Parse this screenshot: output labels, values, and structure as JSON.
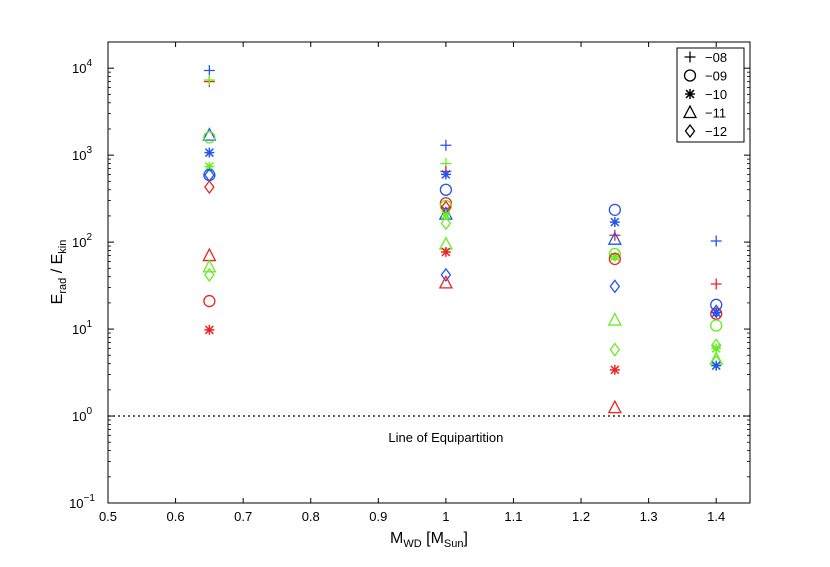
{
  "chart_data": {
    "type": "scatter",
    "title": "",
    "xlabel": {
      "main": "M",
      "sub1": "WD",
      "mid": " [M",
      "sub2": "Sun",
      "end": "]"
    },
    "ylabel": {
      "main1": "E",
      "sub1": "rad",
      "mid": " / E",
      "sub2": "kin"
    },
    "xlim": [
      0.5,
      1.45
    ],
    "ylim": [
      0.1,
      20000
    ],
    "yscale": "log",
    "grid": false,
    "legend_position": "top-right",
    "xticks": [
      "0.5",
      "0.6",
      "0.7",
      "0.8",
      "0.9",
      "1",
      "1.1",
      "1.2",
      "1.3",
      "1.4"
    ],
    "yticks": [
      {
        "base": "10",
        "exp": "−1",
        "value": 0.1
      },
      {
        "base": "10",
        "exp": "0",
        "value": 1
      },
      {
        "base": "10",
        "exp": "1",
        "value": 10
      },
      {
        "base": "10",
        "exp": "2",
        "value": 100
      },
      {
        "base": "10",
        "exp": "3",
        "value": 1000
      },
      {
        "base": "10",
        "exp": "4",
        "value": 10000
      }
    ],
    "legend": [
      {
        "marker": "plus",
        "label": "−08"
      },
      {
        "marker": "circle",
        "label": "−09"
      },
      {
        "marker": "star",
        "label": "−10"
      },
      {
        "marker": "triangle",
        "label": "−11"
      },
      {
        "marker": "diamond",
        "label": "−12"
      }
    ],
    "reference_line": {
      "y": 1,
      "style": "dotted",
      "label": "Line of Equipartition"
    },
    "colors": {
      "blue": "#2255ee",
      "red": "#ee2222",
      "green": "#66ee22"
    },
    "points": [
      {
        "x": 0.65,
        "y": 9400,
        "marker": "plus",
        "color": "blue"
      },
      {
        "x": 0.65,
        "y": 7000,
        "marker": "plus",
        "color": "red"
      },
      {
        "x": 0.65,
        "y": 7300,
        "marker": "plus",
        "color": "green"
      },
      {
        "x": 0.65,
        "y": 1700,
        "marker": "triangle",
        "color": "blue"
      },
      {
        "x": 0.65,
        "y": 1600,
        "marker": "circle",
        "color": "green"
      },
      {
        "x": 0.65,
        "y": 1070,
        "marker": "star",
        "color": "blue"
      },
      {
        "x": 0.65,
        "y": 740,
        "marker": "star",
        "color": "green"
      },
      {
        "x": 0.65,
        "y": 590,
        "marker": "circle",
        "color": "blue"
      },
      {
        "x": 0.65,
        "y": 590,
        "marker": "diamond",
        "color": "blue"
      },
      {
        "x": 0.65,
        "y": 430,
        "marker": "diamond",
        "color": "red"
      },
      {
        "x": 0.65,
        "y": 70,
        "marker": "triangle",
        "color": "red"
      },
      {
        "x": 0.65,
        "y": 52,
        "marker": "triangle",
        "color": "green"
      },
      {
        "x": 0.65,
        "y": 42,
        "marker": "diamond",
        "color": "green"
      },
      {
        "x": 0.65,
        "y": 21,
        "marker": "circle",
        "color": "red"
      },
      {
        "x": 0.65,
        "y": 9.8,
        "marker": "star",
        "color": "red"
      },
      {
        "x": 1.0,
        "y": 1300,
        "marker": "plus",
        "color": "blue"
      },
      {
        "x": 1.0,
        "y": 800,
        "marker": "plus",
        "color": "green"
      },
      {
        "x": 1.0,
        "y": 650,
        "marker": "plus",
        "color": "red"
      },
      {
        "x": 1.0,
        "y": 600,
        "marker": "star",
        "color": "blue"
      },
      {
        "x": 1.0,
        "y": 400,
        "marker": "circle",
        "color": "blue"
      },
      {
        "x": 1.0,
        "y": 280,
        "marker": "circle",
        "color": "red"
      },
      {
        "x": 1.0,
        "y": 260,
        "marker": "circle",
        "color": "green"
      },
      {
        "x": 1.0,
        "y": 250,
        "marker": "diamond",
        "color": "red"
      },
      {
        "x": 1.0,
        "y": 210,
        "marker": "triangle",
        "color": "blue"
      },
      {
        "x": 1.0,
        "y": 205,
        "marker": "star",
        "color": "green"
      },
      {
        "x": 1.0,
        "y": 165,
        "marker": "diamond",
        "color": "green"
      },
      {
        "x": 1.0,
        "y": 95,
        "marker": "triangle",
        "color": "green"
      },
      {
        "x": 1.0,
        "y": 77,
        "marker": "star",
        "color": "red"
      },
      {
        "x": 1.0,
        "y": 42,
        "marker": "diamond",
        "color": "blue"
      },
      {
        "x": 1.0,
        "y": 34,
        "marker": "triangle",
        "color": "red"
      },
      {
        "x": 1.25,
        "y": 235,
        "marker": "circle",
        "color": "blue"
      },
      {
        "x": 1.25,
        "y": 170,
        "marker": "star",
        "color": "blue"
      },
      {
        "x": 1.25,
        "y": 120,
        "marker": "plus",
        "color": "red"
      },
      {
        "x": 1.25,
        "y": 108,
        "marker": "triangle",
        "color": "blue"
      },
      {
        "x": 1.25,
        "y": 73,
        "marker": "circle",
        "color": "green"
      },
      {
        "x": 1.25,
        "y": 68,
        "marker": "star",
        "color": "green"
      },
      {
        "x": 1.25,
        "y": 64,
        "marker": "circle",
        "color": "red"
      },
      {
        "x": 1.25,
        "y": 31,
        "marker": "diamond",
        "color": "blue"
      },
      {
        "x": 1.25,
        "y": 12.7,
        "marker": "triangle",
        "color": "green"
      },
      {
        "x": 1.25,
        "y": 5.8,
        "marker": "diamond",
        "color": "green"
      },
      {
        "x": 1.25,
        "y": 3.4,
        "marker": "star",
        "color": "red"
      },
      {
        "x": 1.25,
        "y": 1.25,
        "marker": "triangle",
        "color": "red"
      },
      {
        "x": 1.4,
        "y": 103,
        "marker": "plus",
        "color": "blue"
      },
      {
        "x": 1.4,
        "y": 33,
        "marker": "plus",
        "color": "red"
      },
      {
        "x": 1.4,
        "y": 19,
        "marker": "circle",
        "color": "blue"
      },
      {
        "x": 1.4,
        "y": 16,
        "marker": "diamond",
        "color": "blue"
      },
      {
        "x": 1.4,
        "y": 15,
        "marker": "circle",
        "color": "red"
      },
      {
        "x": 1.4,
        "y": 15.5,
        "marker": "star",
        "color": "blue"
      },
      {
        "x": 1.4,
        "y": 11,
        "marker": "circle",
        "color": "green"
      },
      {
        "x": 1.4,
        "y": 6.5,
        "marker": "diamond",
        "color": "green"
      },
      {
        "x": 1.4,
        "y": 6.0,
        "marker": "star",
        "color": "green"
      },
      {
        "x": 1.4,
        "y": 4.5,
        "marker": "triangle",
        "color": "green"
      },
      {
        "x": 1.4,
        "y": 4.2,
        "marker": "diamond",
        "color": "green"
      },
      {
        "x": 1.4,
        "y": 3.8,
        "marker": "star",
        "color": "blue"
      }
    ]
  }
}
